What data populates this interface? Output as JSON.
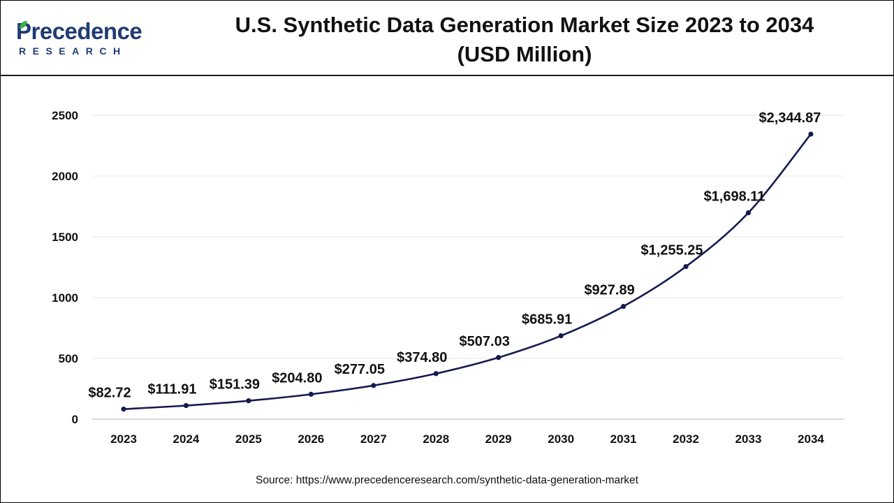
{
  "logo": {
    "word": "Precedence",
    "sub": "RESEARCH"
  },
  "colors": {
    "line": "#151b4f",
    "brand": "#1f3b73",
    "leaf": "#3fae49",
    "text": "#111111"
  },
  "chart_data": {
    "type": "line",
    "title_line1": "U.S. Synthetic Data Generation Market Size 2023 to 2034",
    "title_line2": "(USD Million)",
    "x": [
      "2023",
      "2024",
      "2025",
      "2026",
      "2027",
      "2028",
      "2029",
      "2030",
      "2031",
      "2032",
      "2033",
      "2034"
    ],
    "values": [
      82.72,
      111.91,
      151.39,
      204.8,
      277.05,
      374.8,
      507.03,
      685.91,
      927.89,
      1255.25,
      1698.11,
      2344.87
    ],
    "data_labels": [
      "$82.72",
      "$111.91",
      "$151.39",
      "$204.80",
      "$277.05",
      "$374.80",
      "$507.03",
      "$685.91",
      "$927.89",
      "$1,255.25",
      "$1,698.11",
      "$2,344.87"
    ],
    "y_ticks": [
      0,
      500,
      1000,
      1500,
      2000,
      2500
    ],
    "ylim": [
      0,
      2500
    ],
    "grid": true,
    "legend": false
  },
  "source": "Source: https://www.precedenceresearch.com/synthetic-data-generation-market"
}
